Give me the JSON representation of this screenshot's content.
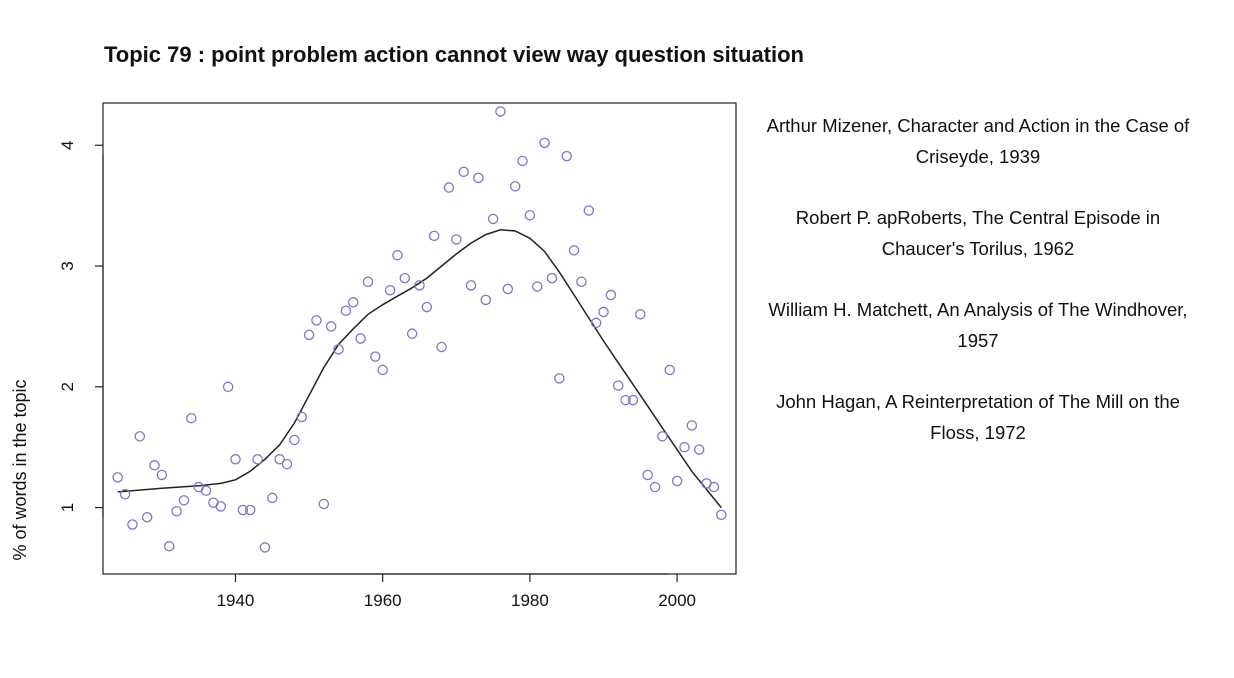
{
  "chart_data": {
    "type": "scatter",
    "title": "Topic 79 : point problem action cannot view way question situation",
    "xlabel": "",
    "ylabel": "% of words in the topic",
    "xlim": [
      1922,
      2008
    ],
    "ylim": [
      0.45,
      4.35
    ],
    "xticks": [
      1940,
      1960,
      1980,
      2000
    ],
    "yticks": [
      1,
      2,
      3,
      4
    ],
    "grid": false,
    "point_color": "#7b77c9",
    "line_color": "#222222",
    "points": [
      {
        "x": 1924,
        "y": 1.25
      },
      {
        "x": 1925,
        "y": 1.11
      },
      {
        "x": 1926,
        "y": 0.86
      },
      {
        "x": 1927,
        "y": 1.59
      },
      {
        "x": 1928,
        "y": 0.92
      },
      {
        "x": 1929,
        "y": 1.35
      },
      {
        "x": 1930,
        "y": 1.27
      },
      {
        "x": 1931,
        "y": 0.68
      },
      {
        "x": 1932,
        "y": 0.97
      },
      {
        "x": 1933,
        "y": 1.06
      },
      {
        "x": 1934,
        "y": 1.74
      },
      {
        "x": 1935,
        "y": 1.17
      },
      {
        "x": 1936,
        "y": 1.14
      },
      {
        "x": 1937,
        "y": 1.04
      },
      {
        "x": 1938,
        "y": 1.01
      },
      {
        "x": 1939,
        "y": 2.0
      },
      {
        "x": 1940,
        "y": 1.4
      },
      {
        "x": 1941,
        "y": 0.98
      },
      {
        "x": 1942,
        "y": 0.98
      },
      {
        "x": 1943,
        "y": 1.4
      },
      {
        "x": 1944,
        "y": 0.67
      },
      {
        "x": 1945,
        "y": 1.08
      },
      {
        "x": 1946,
        "y": 1.4
      },
      {
        "x": 1947,
        "y": 1.36
      },
      {
        "x": 1948,
        "y": 1.56
      },
      {
        "x": 1949,
        "y": 1.75
      },
      {
        "x": 1950,
        "y": 2.43
      },
      {
        "x": 1951,
        "y": 2.55
      },
      {
        "x": 1952,
        "y": 1.03
      },
      {
        "x": 1953,
        "y": 2.5
      },
      {
        "x": 1954,
        "y": 2.31
      },
      {
        "x": 1955,
        "y": 2.63
      },
      {
        "x": 1956,
        "y": 2.7
      },
      {
        "x": 1957,
        "y": 2.4
      },
      {
        "x": 1958,
        "y": 2.87
      },
      {
        "x": 1959,
        "y": 2.25
      },
      {
        "x": 1960,
        "y": 2.14
      },
      {
        "x": 1961,
        "y": 2.8
      },
      {
        "x": 1962,
        "y": 3.09
      },
      {
        "x": 1963,
        "y": 2.9
      },
      {
        "x": 1964,
        "y": 2.44
      },
      {
        "x": 1965,
        "y": 2.84
      },
      {
        "x": 1966,
        "y": 2.66
      },
      {
        "x": 1967,
        "y": 3.25
      },
      {
        "x": 1968,
        "y": 2.33
      },
      {
        "x": 1969,
        "y": 3.65
      },
      {
        "x": 1970,
        "y": 3.22
      },
      {
        "x": 1971,
        "y": 3.78
      },
      {
        "x": 1972,
        "y": 2.84
      },
      {
        "x": 1973,
        "y": 3.73
      },
      {
        "x": 1974,
        "y": 2.72
      },
      {
        "x": 1975,
        "y": 3.39
      },
      {
        "x": 1976,
        "y": 4.28
      },
      {
        "x": 1977,
        "y": 2.81
      },
      {
        "x": 1978,
        "y": 3.66
      },
      {
        "x": 1979,
        "y": 3.87
      },
      {
        "x": 1980,
        "y": 3.42
      },
      {
        "x": 1981,
        "y": 2.83
      },
      {
        "x": 1982,
        "y": 4.02
      },
      {
        "x": 1983,
        "y": 2.9
      },
      {
        "x": 1984,
        "y": 2.07
      },
      {
        "x": 1985,
        "y": 3.91
      },
      {
        "x": 1986,
        "y": 3.13
      },
      {
        "x": 1987,
        "y": 2.87
      },
      {
        "x": 1988,
        "y": 3.46
      },
      {
        "x": 1989,
        "y": 2.53
      },
      {
        "x": 1990,
        "y": 2.62
      },
      {
        "x": 1991,
        "y": 2.76
      },
      {
        "x": 1992,
        "y": 2.01
      },
      {
        "x": 1993,
        "y": 1.89
      },
      {
        "x": 1994,
        "y": 1.89
      },
      {
        "x": 1995,
        "y": 2.6
      },
      {
        "x": 1996,
        "y": 1.27
      },
      {
        "x": 1997,
        "y": 1.17
      },
      {
        "x": 1998,
        "y": 1.59
      },
      {
        "x": 1999,
        "y": 2.14
      },
      {
        "x": 2000,
        "y": 1.22
      },
      {
        "x": 2001,
        "y": 1.5
      },
      {
        "x": 2002,
        "y": 1.68
      },
      {
        "x": 2003,
        "y": 1.48
      },
      {
        "x": 2004,
        "y": 1.2
      },
      {
        "x": 2005,
        "y": 1.17
      },
      {
        "x": 2006,
        "y": 0.94
      }
    ],
    "trend": [
      {
        "x": 1924,
        "y": 1.13
      },
      {
        "x": 1930,
        "y": 1.16
      },
      {
        "x": 1935,
        "y": 1.18
      },
      {
        "x": 1938,
        "y": 1.2
      },
      {
        "x": 1940,
        "y": 1.23
      },
      {
        "x": 1942,
        "y": 1.3
      },
      {
        "x": 1944,
        "y": 1.4
      },
      {
        "x": 1946,
        "y": 1.52
      },
      {
        "x": 1948,
        "y": 1.7
      },
      {
        "x": 1950,
        "y": 1.93
      },
      {
        "x": 1952,
        "y": 2.16
      },
      {
        "x": 1954,
        "y": 2.35
      },
      {
        "x": 1956,
        "y": 2.48
      },
      {
        "x": 1958,
        "y": 2.6
      },
      {
        "x": 1960,
        "y": 2.68
      },
      {
        "x": 1962,
        "y": 2.75
      },
      {
        "x": 1964,
        "y": 2.82
      },
      {
        "x": 1966,
        "y": 2.9
      },
      {
        "x": 1968,
        "y": 3.0
      },
      {
        "x": 1970,
        "y": 3.1
      },
      {
        "x": 1972,
        "y": 3.19
      },
      {
        "x": 1974,
        "y": 3.26
      },
      {
        "x": 1976,
        "y": 3.3
      },
      {
        "x": 1978,
        "y": 3.29
      },
      {
        "x": 1980,
        "y": 3.23
      },
      {
        "x": 1982,
        "y": 3.12
      },
      {
        "x": 1984,
        "y": 2.95
      },
      {
        "x": 1986,
        "y": 2.76
      },
      {
        "x": 1988,
        "y": 2.57
      },
      {
        "x": 1990,
        "y": 2.38
      },
      {
        "x": 1992,
        "y": 2.2
      },
      {
        "x": 1994,
        "y": 2.02
      },
      {
        "x": 1996,
        "y": 1.84
      },
      {
        "x": 1998,
        "y": 1.66
      },
      {
        "x": 2000,
        "y": 1.48
      },
      {
        "x": 2002,
        "y": 1.3
      },
      {
        "x": 2004,
        "y": 1.15
      },
      {
        "x": 2006,
        "y": 1.0
      }
    ],
    "annotations": [
      "Arthur Mizener, Character and Action in the Case of Criseyde, 1939",
      "Robert P. apRoberts, The Central Episode in Chaucer's Torilus, 1962",
      "William H. Matchett, An Analysis of The Windhover, 1957",
      "John Hagan, A Reinterpretation of The Mill on the Floss, 1972"
    ]
  }
}
